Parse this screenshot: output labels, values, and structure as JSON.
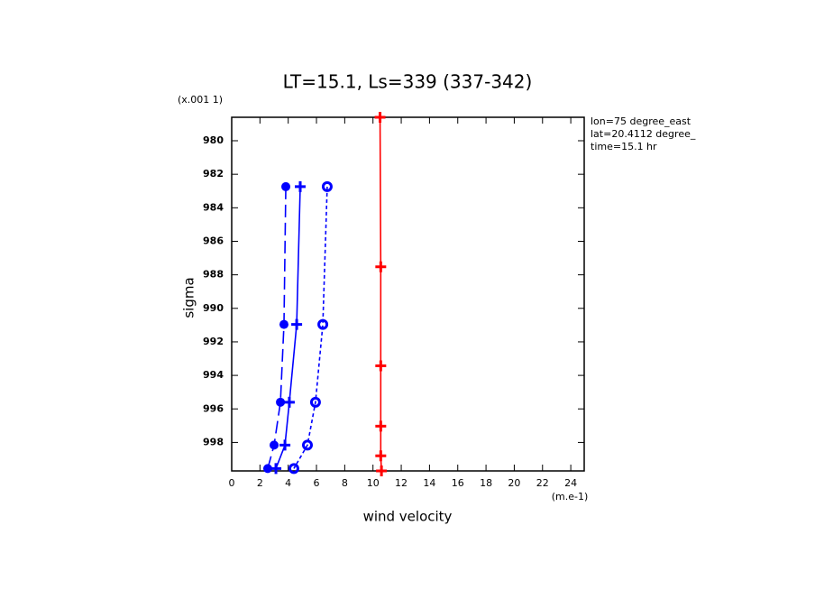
{
  "chart_data": {
    "type": "line",
    "title": "LT=15.1, Ls=339 (337-342)",
    "x_label": "wind velocity",
    "y_label": "sigma",
    "x_units": "(m.e-1)",
    "y_units": "(x.001 1)",
    "annotations": [
      "lon=75 degree_east",
      "lat=20.4112 degree_",
      "time=15.1 hr"
    ],
    "xlim": [
      0,
      24.95
    ],
    "xticks": [
      0,
      2,
      4,
      6,
      8,
      10,
      12,
      14,
      16,
      18,
      20,
      22,
      24
    ],
    "ylim": [
      978.6,
      999.7
    ],
    "y_inverted": true,
    "yticks": [
      980,
      982,
      984,
      986,
      988,
      990,
      992,
      994,
      996,
      998
    ],
    "series": [
      {
        "color": "#0000ff",
        "line": "longdash",
        "marker": "dot",
        "x": [
          3.83,
          3.7,
          3.45,
          3.0,
          2.55
        ],
        "y": [
          982.74,
          990.96,
          995.6,
          998.16,
          999.56
        ]
      },
      {
        "color": "#0000ff",
        "line": "solid",
        "marker": "plus",
        "x": [
          4.85,
          4.6,
          4.08,
          3.77,
          3.13
        ],
        "y": [
          982.74,
          990.96,
          995.6,
          998.16,
          999.56
        ]
      },
      {
        "color": "#0000ff",
        "line": "dotted",
        "marker": "ring",
        "x": [
          6.76,
          6.45,
          5.93,
          5.36,
          4.4
        ],
        "y": [
          982.74,
          990.96,
          995.6,
          998.16,
          999.56
        ]
      },
      {
        "color": "#ff0000",
        "line": "solid",
        "marker": "plus",
        "x": [
          10.5,
          10.55,
          10.55,
          10.55,
          10.55,
          10.6
        ],
        "y": [
          978.6,
          987.52,
          993.43,
          997.03,
          998.8,
          999.7
        ]
      }
    ]
  }
}
